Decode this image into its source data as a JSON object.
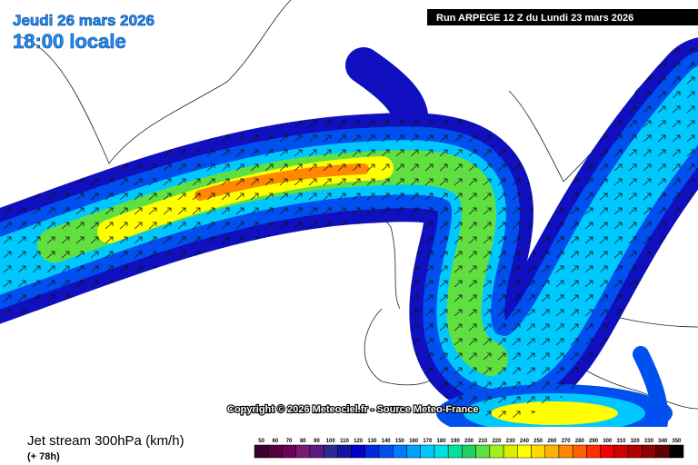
{
  "header": {
    "date": "Jeudi 26 mars 2026",
    "time": "18:00 locale",
    "run": "Run ARPEGE 12 Z du Lundi 23 mars 2026"
  },
  "copyright": "Copyright © 2026 Meteociel.fr - Source Meteo-France",
  "footer": {
    "title": "Jet stream 300hPa (km/h)",
    "lead": "(+ 78h)"
  },
  "legend": {
    "labels": [
      50,
      60,
      70,
      80,
      90,
      100,
      110,
      120,
      130,
      140,
      150,
      160,
      170,
      180,
      190,
      200,
      210,
      220,
      230,
      240,
      250,
      260,
      270,
      280,
      290,
      300,
      310,
      320,
      330,
      340,
      350
    ],
    "colors": [
      "#3a0030",
      "#55003f",
      "#6e0057",
      "#7a1a6e",
      "#5a1a80",
      "#2a2a90",
      "#1414a0",
      "#0000c8",
      "#0028e0",
      "#0050f0",
      "#0078ff",
      "#00a0ff",
      "#00c8ff",
      "#00e0e0",
      "#00e0a0",
      "#20d060",
      "#60e040",
      "#a0f020",
      "#d8f000",
      "#ffff00",
      "#ffd800",
      "#ffb000",
      "#ff8800",
      "#ff6000",
      "#ff3000",
      "#f00000",
      "#d00000",
      "#b00000",
      "#900000",
      "#600000",
      "#000000"
    ]
  }
}
